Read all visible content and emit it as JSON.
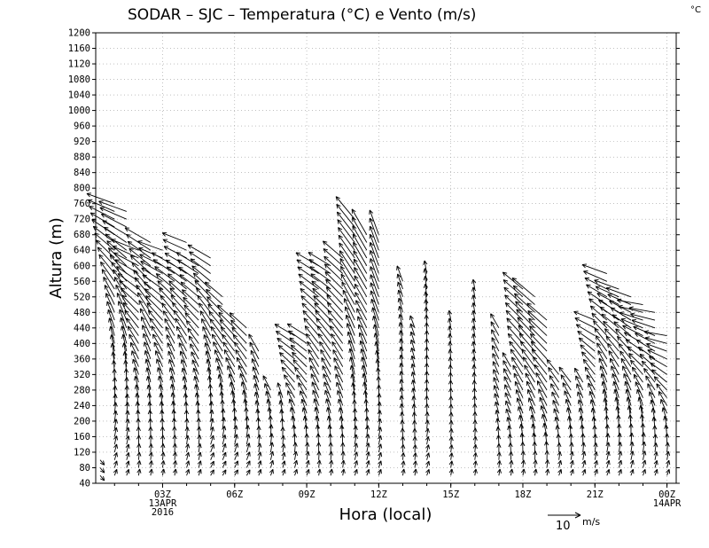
{
  "chart_data": {
    "type": "wind-barb-profile",
    "title": "SODAR  –  SJC  –  Temperatura (°C) e Vento (m/s)",
    "unit_label": "°C",
    "xlabel": "Hora (local)",
    "ylabel": "Altura (m)",
    "ylim": [
      40,
      1200
    ],
    "yticks": [
      40,
      80,
      120,
      160,
      200,
      240,
      280,
      320,
      360,
      400,
      440,
      480,
      520,
      560,
      600,
      640,
      680,
      720,
      760,
      800,
      840,
      880,
      920,
      960,
      1000,
      1040,
      1080,
      1120,
      1160,
      1200
    ],
    "xlim_hours": [
      -0.6,
      23.2
    ],
    "xticks": [
      {
        "hour": 2,
        "lines": [
          "03Z",
          "13APR",
          "2016"
        ]
      },
      {
        "hour": 5,
        "lines": [
          "06Z"
        ]
      },
      {
        "hour": 8,
        "lines": [
          "09Z"
        ]
      },
      {
        "hour": 11,
        "lines": [
          "12Z"
        ]
      },
      {
        "hour": 14,
        "lines": [
          "15Z"
        ]
      },
      {
        "hour": 17,
        "lines": [
          "18Z"
        ]
      },
      {
        "hour": 20,
        "lines": [
          "21Z"
        ]
      },
      {
        "hour": 23,
        "lines": [
          "00Z",
          "14APR"
        ]
      }
    ],
    "grid": true,
    "legend": {
      "label": "10",
      "units": "m/s",
      "reference_speed": 10
    },
    "vector_spec": "each profile: hour, top height (m), wind direction bottom->top (deg), speed bottom->top (m/s)",
    "profiles": [
      {
        "hour": -0.6,
        "top": 100,
        "dir": [
          320,
          320
        ],
        "spd": [
          2,
          2
        ]
      },
      {
        "hour": 0.0,
        "top": 760,
        "dir": [
          200,
          180,
          150,
          110
        ],
        "spd": [
          2,
          4,
          7,
          9
        ]
      },
      {
        "hour": 0.5,
        "top": 740,
        "dir": [
          200,
          180,
          150,
          110
        ],
        "spd": [
          2,
          4,
          7,
          9
        ]
      },
      {
        "hour": 1.0,
        "top": 650,
        "dir": [
          190,
          170,
          140,
          110
        ],
        "spd": [
          2,
          4,
          7,
          9
        ]
      },
      {
        "hour": 1.5,
        "top": 660,
        "dir": [
          190,
          170,
          150,
          120
        ],
        "spd": [
          2,
          4,
          7,
          9
        ]
      },
      {
        "hour": 2.0,
        "top": 640,
        "dir": [
          190,
          170,
          140,
          110
        ],
        "spd": [
          2,
          4,
          7,
          8
        ]
      },
      {
        "hour": 2.5,
        "top": 600,
        "dir": [
          190,
          170,
          150,
          120
        ],
        "spd": [
          2,
          4,
          6,
          8
        ]
      },
      {
        "hour": 3.0,
        "top": 670,
        "dir": [
          200,
          170,
          140,
          110
        ],
        "spd": [
          2,
          4,
          7,
          8
        ]
      },
      {
        "hour": 3.5,
        "top": 610,
        "dir": [
          200,
          170,
          140,
          120
        ],
        "spd": [
          2,
          4,
          6,
          8
        ]
      },
      {
        "hour": 4.0,
        "top": 620,
        "dir": [
          210,
          180,
          150,
          120
        ],
        "spd": [
          2,
          4,
          6,
          8
        ]
      },
      {
        "hour": 4.5,
        "top": 520,
        "dir": [
          210,
          180,
          150,
          130
        ],
        "spd": [
          2,
          4,
          6,
          7
        ]
      },
      {
        "hour": 5.0,
        "top": 470,
        "dir": [
          210,
          180,
          150,
          130
        ],
        "spd": [
          2,
          4,
          6,
          7
        ]
      },
      {
        "hour": 5.5,
        "top": 450,
        "dir": [
          210,
          180,
          150,
          130
        ],
        "spd": [
          2,
          4,
          6,
          7
        ]
      },
      {
        "hour": 6.0,
        "top": 380,
        "dir": [
          200,
          170,
          150
        ],
        "spd": [
          2,
          4,
          6
        ]
      },
      {
        "hour": 6.5,
        "top": 290,
        "dir": [
          200,
          180,
          150
        ],
        "spd": [
          2,
          4,
          5
        ]
      },
      {
        "hour": 7.0,
        "top": 270,
        "dir": [
          200,
          180,
          160
        ],
        "spd": [
          2,
          3,
          5
        ]
      },
      {
        "hour": 7.5,
        "top": 420,
        "dir": [
          200,
          170,
          140,
          120
        ],
        "spd": [
          2,
          4,
          6,
          7
        ]
      },
      {
        "hour": 8.0,
        "top": 430,
        "dir": [
          200,
          170,
          140,
          120
        ],
        "spd": [
          2,
          4,
          6,
          7
        ]
      },
      {
        "hour": 8.5,
        "top": 600,
        "dir": [
          190,
          160,
          140,
          120
        ],
        "spd": [
          2,
          5,
          7,
          8
        ]
      },
      {
        "hour": 9.0,
        "top": 610,
        "dir": [
          190,
          160,
          140,
          120
        ],
        "spd": [
          2,
          5,
          7,
          8
        ]
      },
      {
        "hour": 9.5,
        "top": 630,
        "dir": [
          190,
          160,
          140,
          130
        ],
        "spd": [
          2,
          5,
          7,
          8
        ]
      },
      {
        "hour": 10.0,
        "top": 730,
        "dir": [
          200,
          170,
          150,
          140
        ],
        "spd": [
          2,
          5,
          8,
          9
        ]
      },
      {
        "hour": 10.5,
        "top": 680,
        "dir": [
          200,
          170,
          150,
          150
        ],
        "spd": [
          2,
          5,
          7,
          9
        ]
      },
      {
        "hour": 11.0,
        "top": 680,
        "dir": [
          200,
          180,
          160,
          160
        ],
        "spd": [
          2,
          4,
          7,
          8
        ]
      },
      {
        "hour": 12.0,
        "top": 560,
        "dir": [
          190,
          170,
          170,
          160
        ],
        "spd": [
          2,
          3,
          4,
          5
        ]
      },
      {
        "hour": 12.5,
        "top": 440,
        "dir": [
          190,
          170,
          160
        ],
        "spd": [
          2,
          3,
          4
        ]
      },
      {
        "hour": 13.0,
        "top": 580,
        "dir": [
          200,
          180,
          180,
          170
        ],
        "spd": [
          2,
          3,
          4,
          4
        ]
      },
      {
        "hour": 14.0,
        "top": 460,
        "dir": [
          190,
          180,
          170
        ],
        "spd": [
          2,
          3,
          3
        ]
      },
      {
        "hour": 15.0,
        "top": 540,
        "dir": [
          190,
          180,
          170,
          170
        ],
        "spd": [
          2,
          3,
          3,
          3
        ]
      },
      {
        "hour": 16.0,
        "top": 440,
        "dir": [
          190,
          160,
          150
        ],
        "spd": [
          2,
          4,
          5
        ]
      },
      {
        "hour": 16.5,
        "top": 340,
        "dir": [
          190,
          160,
          150
        ],
        "spd": [
          2,
          4,
          5
        ]
      },
      {
        "hour": 17.0,
        "top": 540,
        "dir": [
          190,
          160,
          140,
          130
        ],
        "spd": [
          2,
          5,
          7,
          8
        ]
      },
      {
        "hour": 17.5,
        "top": 520,
        "dir": [
          190,
          160,
          140,
          130
        ],
        "spd": [
          2,
          5,
          7,
          9
        ]
      },
      {
        "hour": 18.0,
        "top": 470,
        "dir": [
          190,
          160,
          140,
          130
        ],
        "spd": [
          2,
          5,
          7,
          8
        ]
      },
      {
        "hour": 18.5,
        "top": 330,
        "dir": [
          200,
          160,
          140
        ],
        "spd": [
          2,
          4,
          6
        ]
      },
      {
        "hour": 19.0,
        "top": 310,
        "dir": [
          200,
          170,
          140
        ],
        "spd": [
          2,
          4,
          6
        ]
      },
      {
        "hour": 19.5,
        "top": 300,
        "dir": [
          200,
          170,
          150
        ],
        "spd": [
          2,
          4,
          5
        ]
      },
      {
        "hour": 20.0,
        "top": 470,
        "dir": [
          200,
          170,
          140,
          110
        ],
        "spd": [
          2,
          4,
          6,
          7
        ]
      },
      {
        "hour": 20.5,
        "top": 580,
        "dir": [
          200,
          170,
          140,
          110
        ],
        "spd": [
          2,
          5,
          6,
          8
        ]
      },
      {
        "hour": 21.0,
        "top": 540,
        "dir": [
          200,
          170,
          140,
          110
        ],
        "spd": [
          2,
          5,
          6,
          8
        ]
      },
      {
        "hour": 21.5,
        "top": 520,
        "dir": [
          200,
          170,
          140,
          110
        ],
        "spd": [
          2,
          5,
          6,
          8
        ]
      },
      {
        "hour": 22.0,
        "top": 500,
        "dir": [
          200,
          170,
          130,
          100
        ],
        "spd": [
          2,
          5,
          6,
          8
        ]
      },
      {
        "hour": 22.5,
        "top": 480,
        "dir": [
          200,
          170,
          130,
          100
        ],
        "spd": [
          2,
          4,
          6,
          8
        ]
      },
      {
        "hour": 23.0,
        "top": 420,
        "dir": [
          200,
          170,
          130,
          100
        ],
        "spd": [
          2,
          4,
          6,
          7
        ]
      }
    ]
  }
}
